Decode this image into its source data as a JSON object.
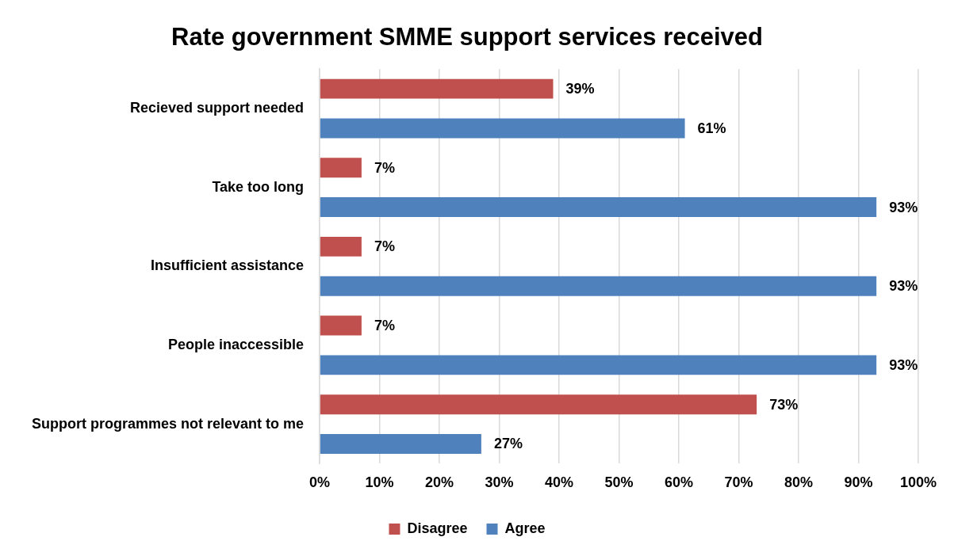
{
  "chart_data": {
    "type": "bar",
    "orientation": "horizontal",
    "title": "Rate government SMME support services received",
    "categories": [
      "Recieved support needed",
      "Take too long",
      "Insufficient assistance",
      "People inaccessible",
      "Support programmes not relevant to me"
    ],
    "series": [
      {
        "name": "Disagree",
        "color": "#c0504d",
        "values": [
          39,
          7,
          7,
          7,
          73
        ],
        "value_labels": [
          "39%",
          "7%",
          "7%",
          "7%",
          "73%"
        ]
      },
      {
        "name": "Agree",
        "color": "#4f81bd",
        "values": [
          61,
          93,
          93,
          93,
          27
        ],
        "value_labels": [
          "61%",
          "93%",
          "93%",
          "93%",
          "27%"
        ]
      }
    ],
    "xlim": [
      0,
      100
    ],
    "xticks": [
      {
        "value": 0,
        "label": "0%"
      },
      {
        "value": 10,
        "label": "10%"
      },
      {
        "value": 20,
        "label": "20%"
      },
      {
        "value": 30,
        "label": "30%"
      },
      {
        "value": 40,
        "label": "40%"
      },
      {
        "value": 50,
        "label": "50%"
      },
      {
        "value": 60,
        "label": "60%"
      },
      {
        "value": 70,
        "label": "70%"
      },
      {
        "value": 80,
        "label": "80%"
      },
      {
        "value": 90,
        "label": "90%"
      },
      {
        "value": 100,
        "label": "100%"
      }
    ],
    "grid": "x",
    "legend": "bottom"
  }
}
